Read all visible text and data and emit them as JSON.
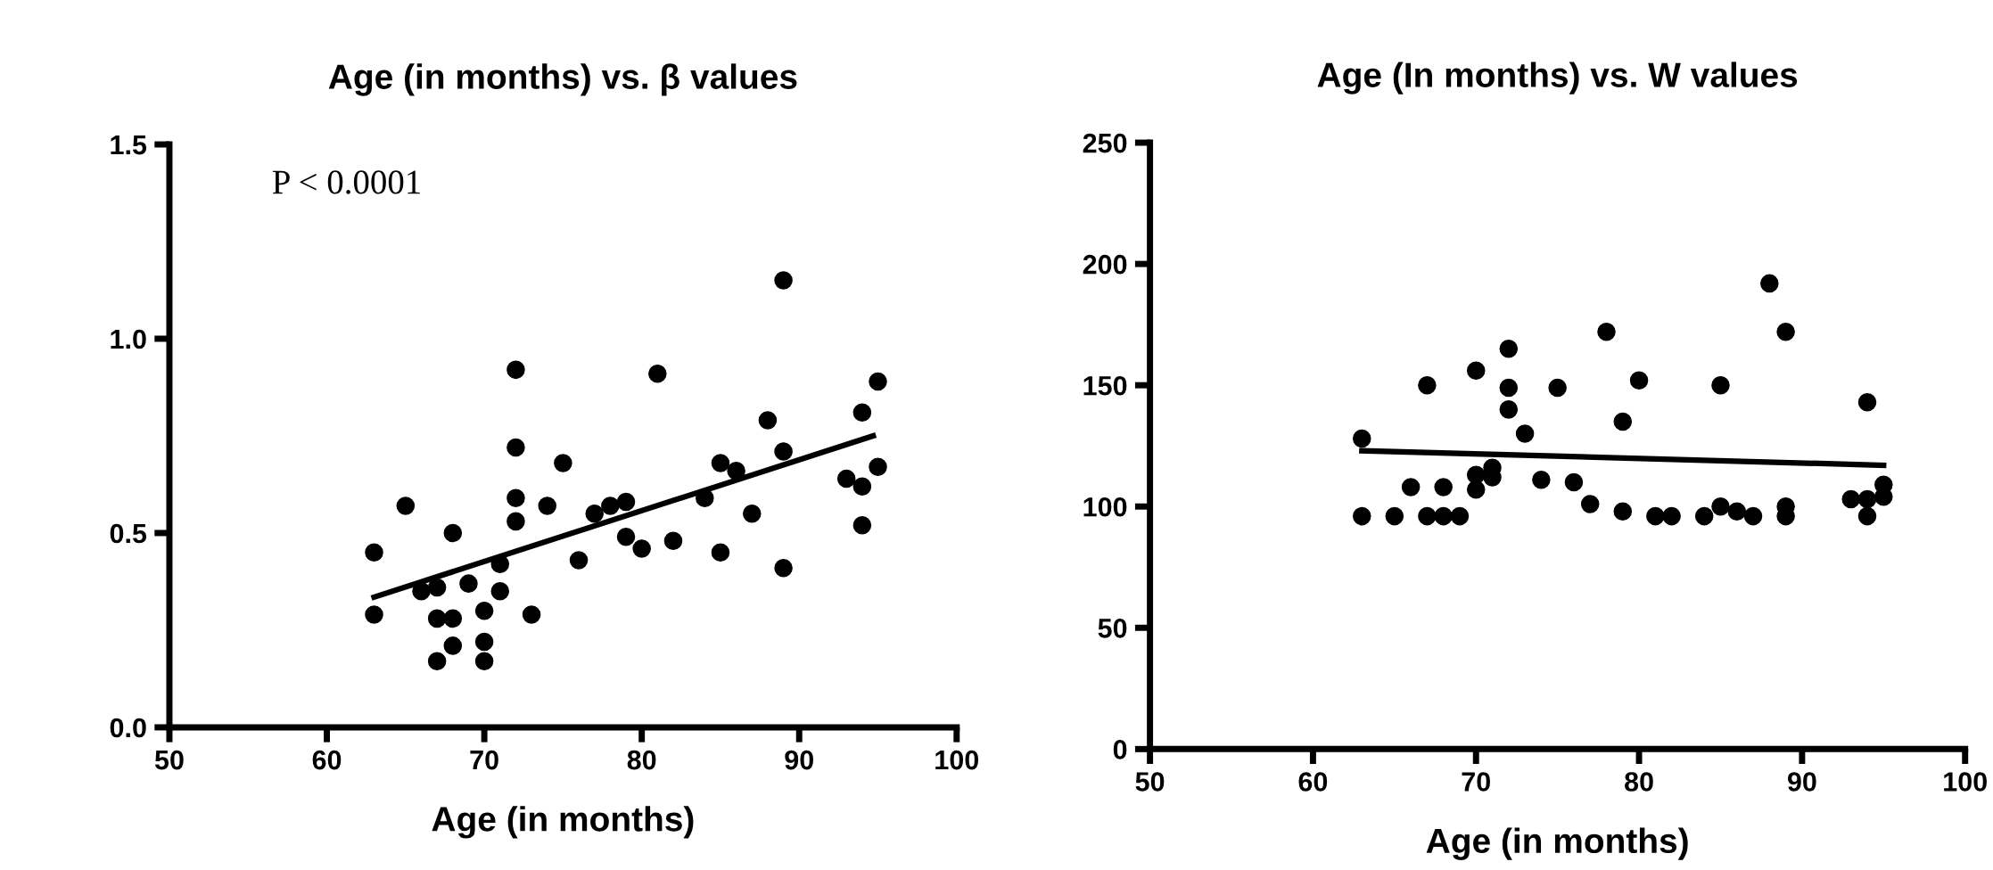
{
  "chart_data": [
    {
      "type": "scatter",
      "title": "Age (in months) vs. β values",
      "xlabel": "Age (in months)",
      "xlim": [
        50,
        100
      ],
      "xticks": [
        50,
        60,
        70,
        80,
        90,
        100
      ],
      "ylim": [
        0,
        1.5
      ],
      "yticks": [
        {
          "value": 0,
          "label": "0.0"
        },
        {
          "value": 0.5,
          "label": "0.5"
        },
        {
          "value": 1.0,
          "label": "1.0"
        },
        {
          "value": 1.5,
          "label": "1.5"
        }
      ],
      "grid": false,
      "annotations": [
        "P < 0.0001"
      ],
      "series": [
        {
          "marker": "circle",
          "color": "#000000",
          "x": [
            63,
            63,
            65,
            66,
            67,
            67,
            67,
            68,
            68,
            68,
            69,
            70,
            70,
            70,
            71,
            71,
            72,
            72,
            72,
            72,
            73,
            74,
            75,
            76,
            77,
            78,
            79,
            79,
            80,
            81,
            82,
            84,
            85,
            85,
            86,
            87,
            88,
            89,
            89,
            89,
            93,
            94,
            94,
            94,
            95,
            95
          ],
          "values": [
            0.45,
            0.29,
            0.57,
            0.35,
            0.36,
            0.28,
            0.17,
            0.5,
            0.28,
            0.21,
            0.37,
            0.3,
            0.22,
            0.17,
            0.42,
            0.35,
            0.92,
            0.72,
            0.59,
            0.53,
            0.29,
            0.57,
            0.68,
            0.43,
            0.55,
            0.57,
            0.58,
            0.49,
            0.46,
            0.91,
            0.48,
            0.59,
            0.68,
            0.45,
            0.66,
            0.55,
            0.79,
            1.15,
            0.71,
            0.41,
            0.64,
            0.81,
            0.62,
            0.52,
            0.89,
            0.67
          ]
        },
        {
          "type": "line",
          "color": "#000000",
          "x": [
            63,
            94.7
          ],
          "values": [
            0.335,
            0.75
          ]
        }
      ]
    },
    {
      "type": "scatter",
      "title": "Age (In months) vs. W values",
      "xlabel": "Age (in months)",
      "xlim": [
        50,
        100
      ],
      "xticks": [
        50,
        60,
        70,
        80,
        90,
        100
      ],
      "ylim": [
        0,
        250
      ],
      "yticks": [
        0,
        50,
        100,
        150,
        200,
        250
      ],
      "grid": false,
      "series": [
        {
          "marker": "circle",
          "color": "#000000",
          "x": [
            63,
            63,
            65,
            66,
            67,
            67,
            68,
            68,
            69,
            70,
            70,
            70,
            71,
            71,
            72,
            72,
            72,
            73,
            74,
            75,
            76,
            77,
            78,
            79,
            79,
            80,
            81,
            82,
            84,
            85,
            85,
            86,
            87,
            88,
            89,
            89,
            89,
            93,
            94,
            94,
            94,
            95,
            95
          ],
          "values": [
            128,
            96,
            96,
            108,
            150,
            96,
            108,
            96,
            96,
            156,
            113,
            107,
            116,
            112,
            165,
            149,
            140,
            130,
            111,
            149,
            110,
            101,
            172,
            135,
            98,
            152,
            96,
            96,
            96,
            150,
            100,
            98,
            96,
            192,
            172,
            100,
            96,
            103,
            143,
            103,
            96,
            109,
            104
          ]
        },
        {
          "type": "line",
          "color": "#000000",
          "x": [
            63,
            95
          ],
          "values": [
            123,
            117
          ]
        }
      ]
    }
  ]
}
